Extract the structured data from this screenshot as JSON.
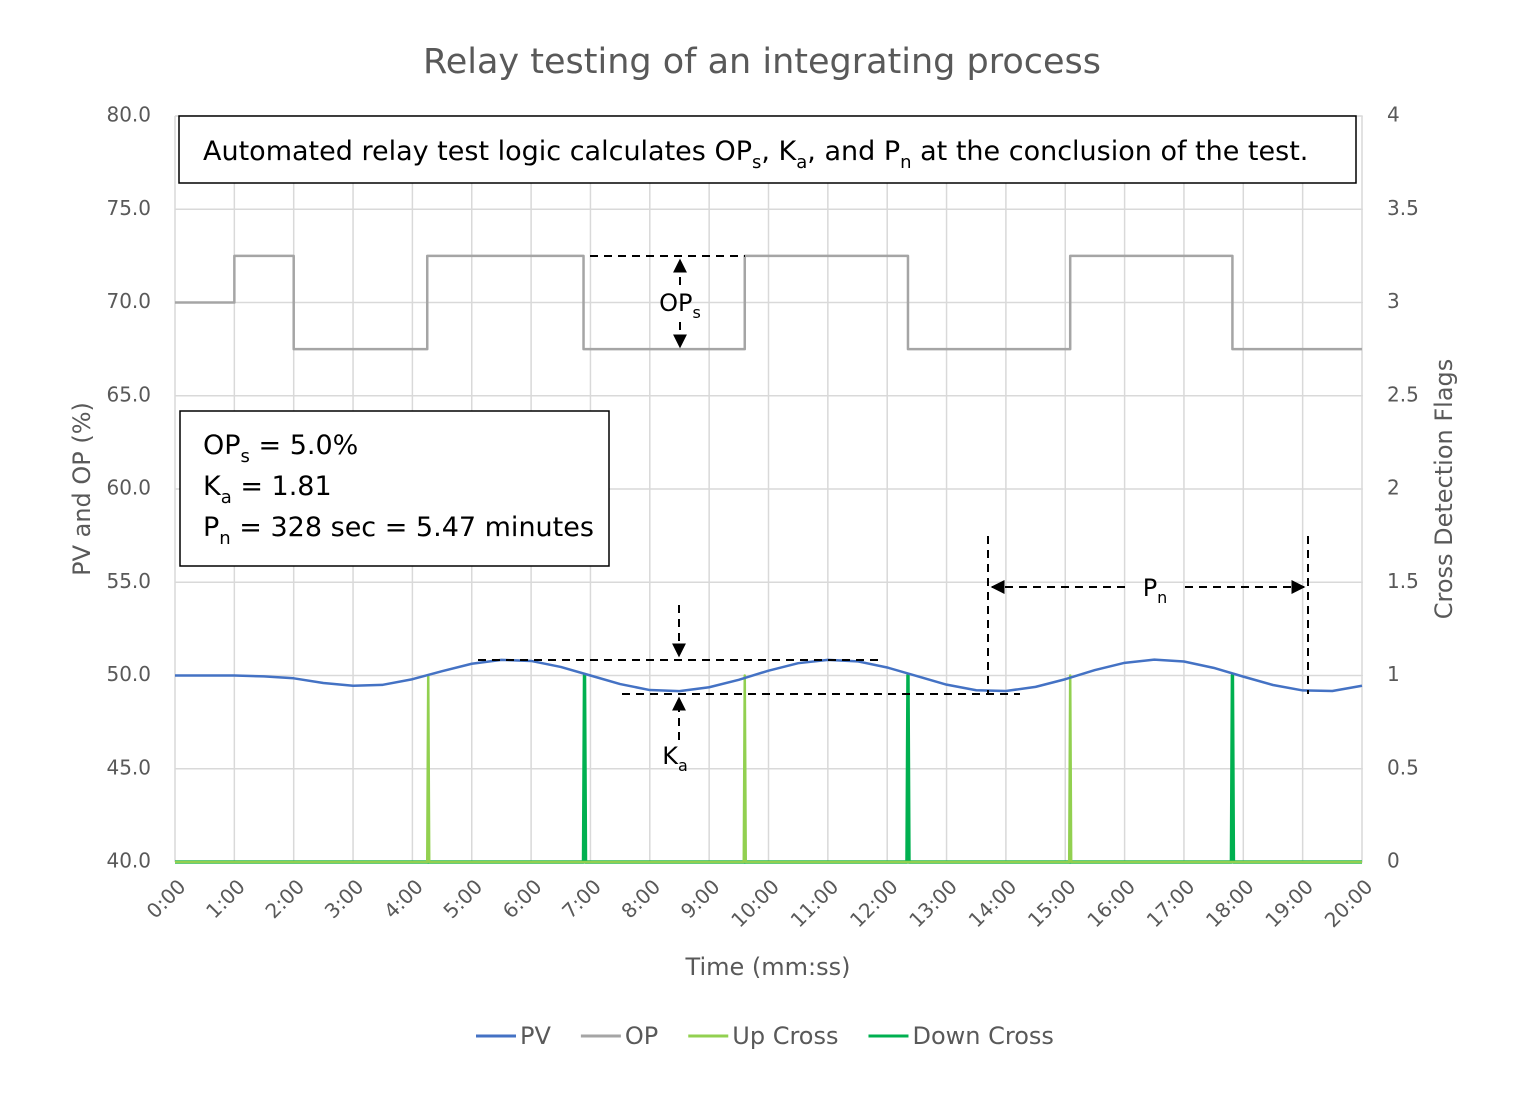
{
  "chart_data": {
    "type": "line",
    "title": "Relay testing of an integrating process",
    "x_label": "Time (mm:ss)",
    "y_label": "PV and OP (%)",
    "y2_label": "Cross Detection Flags",
    "xlim": [
      0,
      1200
    ],
    "xticks": [
      {
        "value": 0,
        "label": "0:00"
      },
      {
        "value": 60,
        "label": "1:00"
      },
      {
        "value": 120,
        "label": "2:00"
      },
      {
        "value": 180,
        "label": "3:00"
      },
      {
        "value": 240,
        "label": "4:00"
      },
      {
        "value": 300,
        "label": "5:00"
      },
      {
        "value": 360,
        "label": "6:00"
      },
      {
        "value": 420,
        "label": "7:00"
      },
      {
        "value": 480,
        "label": "8:00"
      },
      {
        "value": 540,
        "label": "9:00"
      },
      {
        "value": 600,
        "label": "10:00"
      },
      {
        "value": 660,
        "label": "11:00"
      },
      {
        "value": 720,
        "label": "12:00"
      },
      {
        "value": 780,
        "label": "13:00"
      },
      {
        "value": 840,
        "label": "14:00"
      },
      {
        "value": 900,
        "label": "15:00"
      },
      {
        "value": 960,
        "label": "16:00"
      },
      {
        "value": 1020,
        "label": "17:00"
      },
      {
        "value": 1080,
        "label": "18:00"
      },
      {
        "value": 1140,
        "label": "19:00"
      },
      {
        "value": 1200,
        "label": "20:00"
      }
    ],
    "ylim": [
      40,
      80
    ],
    "yticks": [
      {
        "value": 40,
        "label": "40.0"
      },
      {
        "value": 45,
        "label": "45.0"
      },
      {
        "value": 50,
        "label": "50.0"
      },
      {
        "value": 55,
        "label": "55.0"
      },
      {
        "value": 60,
        "label": "60.0"
      },
      {
        "value": 65,
        "label": "65.0"
      },
      {
        "value": 70,
        "label": "70.0"
      },
      {
        "value": 75,
        "label": "75.0"
      },
      {
        "value": 80,
        "label": "80.0"
      }
    ],
    "y2lim": [
      0,
      4
    ],
    "y2ticks": [
      0,
      0.5,
      1,
      1.5,
      2,
      2.5,
      3,
      3.5,
      4
    ],
    "grid": true,
    "legend": "bottom",
    "series": [
      {
        "name": "PV",
        "color": "#4472c4",
        "x": [
          0,
          30,
          60,
          90,
          120,
          150,
          180,
          210,
          240,
          270,
          300,
          330,
          360,
          390,
          420,
          450,
          480,
          510,
          540,
          570,
          600,
          630,
          660,
          690,
          720,
          750,
          780,
          810,
          840,
          870,
          900,
          930,
          960,
          990,
          1020,
          1050,
          1080,
          1110,
          1140,
          1170,
          1200
        ],
        "values": [
          50.0,
          50.0,
          50.0,
          49.95,
          49.85,
          49.6,
          49.45,
          49.5,
          49.8,
          50.23,
          50.63,
          50.84,
          50.78,
          50.46,
          50.0,
          49.54,
          49.22,
          49.16,
          49.37,
          49.77,
          50.26,
          50.66,
          50.84,
          50.76,
          50.43,
          49.97,
          49.51,
          49.21,
          49.17,
          49.39,
          49.8,
          50.29,
          50.68,
          50.85,
          50.75,
          50.41,
          49.94,
          49.49,
          49.2,
          49.17,
          49.45
        ]
      },
      {
        "name": "OP",
        "color": "#a5a5a5",
        "x": [
          0,
          60,
          60,
          120,
          120,
          255,
          255,
          413,
          413,
          576,
          576,
          741,
          741,
          905,
          905,
          1069,
          1069,
          1200
        ],
        "values": [
          70,
          70,
          72.5,
          72.5,
          67.5,
          67.5,
          72.5,
          72.5,
          67.5,
          67.5,
          72.5,
          72.5,
          67.5,
          67.5,
          72.5,
          72.5,
          67.5,
          67.5
        ]
      },
      {
        "name": "Up Cross",
        "color": "#92d050",
        "axis": "y2",
        "x": [
          0,
          255,
          256,
          257,
          575,
          576,
          577,
          904,
          905,
          906,
          1200
        ],
        "values": [
          0,
          0,
          1,
          0,
          0,
          1,
          0,
          0,
          1,
          0,
          0
        ]
      },
      {
        "name": "Down Cross",
        "color": "#00b050",
        "axis": "y2",
        "x": [
          0,
          413,
          414,
          415,
          740,
          741,
          742,
          1068,
          1069,
          1070,
          1200
        ],
        "values": [
          0,
          0,
          1,
          0,
          0,
          1,
          0,
          0,
          1,
          0,
          0
        ]
      }
    ],
    "annotations": {
      "summary": [
        "Automated relay test logic calculates OP",
        "s",
        ", K",
        "a",
        ", and P",
        "n",
        " at the conclusion of the test."
      ],
      "results": [
        [
          "OP",
          "s",
          " = 5.0%"
        ],
        [
          "K",
          "a",
          " = 1.81"
        ],
        [
          "P",
          "n",
          " = 328 sec = 5.47 minutes"
        ]
      ],
      "ops_label": [
        "OP",
        "s"
      ],
      "ka_label": [
        "K",
        "a"
      ],
      "pn_label": [
        "P",
        "n"
      ]
    }
  }
}
